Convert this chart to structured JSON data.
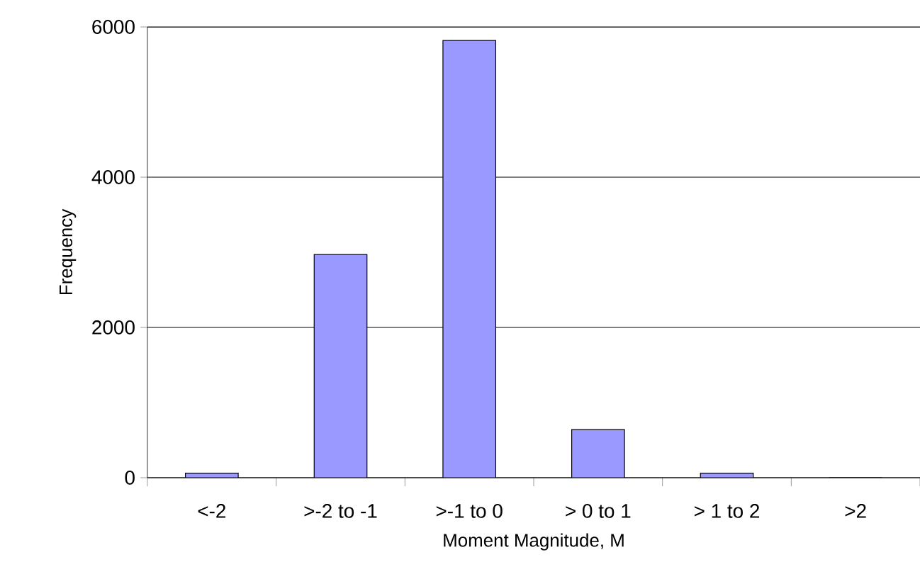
{
  "chart_data": {
    "type": "bar",
    "xlabel": "Moment Magnitude, M",
    "ylabel": "Frequency",
    "categories": [
      "<-2",
      ">-2 to -1",
      ">-1 to 0",
      "> 0 to 1",
      "> 1 to 2",
      ">2"
    ],
    "values": [
      60,
      2970,
      5820,
      640,
      60,
      0
    ],
    "color": "#9999ff",
    "ylim": [
      0,
      6000
    ],
    "yticks": [
      0,
      2000,
      4000,
      6000
    ],
    "grid": "y"
  }
}
